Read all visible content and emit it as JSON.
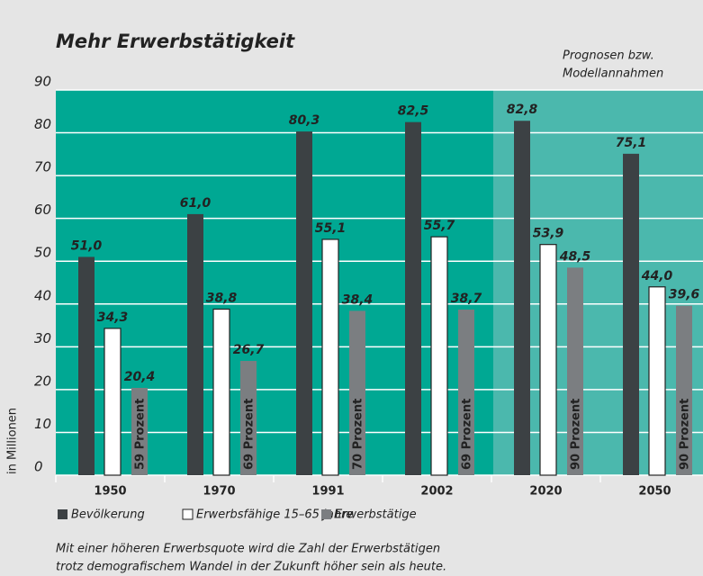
{
  "chart_data": {
    "type": "bar",
    "title": "Mehr Erwerbstätigkeit",
    "note": [
      "Prognosen bzw.",
      "Modellannahmen"
    ],
    "ylabel": "in Millionen",
    "categories": [
      "1950",
      "1970",
      "1991",
      "2002",
      "2020",
      "2050"
    ],
    "series": [
      {
        "name": "Bevölkerung",
        "color": "#3c4144",
        "values": [
          51.0,
          61.0,
          80.3,
          82.5,
          82.8,
          75.1
        ],
        "value_labels": [
          "51,0",
          "61,0",
          "80,3",
          "82,5",
          "82,8",
          "75,1"
        ]
      },
      {
        "name": "Erwerbsfähige 15–65 Jahre",
        "color": "#ffffff",
        "values": [
          34.3,
          38.8,
          55.1,
          55.7,
          53.9,
          44.0
        ],
        "value_labels": [
          "34,3",
          "38,8",
          "55,1",
          "55,7",
          "53,9",
          "44,0"
        ]
      },
      {
        "name": "Erwerbstätige",
        "color": "#7b7e81",
        "values": [
          20.4,
          26.7,
          38.4,
          38.7,
          48.5,
          39.6
        ],
        "value_labels": [
          "20,4",
          "26,7",
          "38,4",
          "38,7",
          "48,5",
          "39,6"
        ]
      }
    ],
    "bar_annotations": [
      "59 Prozent",
      "69 Prozent",
      "70 Prozent",
      "69 Prozent",
      "90 Prozent",
      "90 Prozent"
    ],
    "ylim": [
      0,
      90
    ],
    "yticks": [
      0,
      10,
      20,
      30,
      40,
      50,
      60,
      70,
      80,
      90
    ],
    "grid": true,
    "caption": [
      "Mit einer höheren Erwerbsquote wird die Zahl der Erwerbstätigen",
      "trotz demografischem Wandel in der Zukunft höher sein als heute."
    ]
  }
}
